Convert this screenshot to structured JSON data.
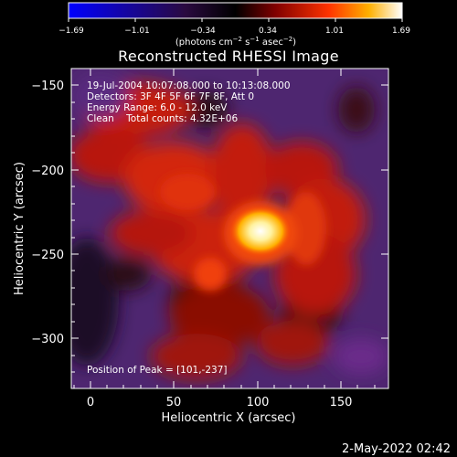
{
  "colorbar": {
    "tick_labels": [
      "−1.69",
      "−1.01",
      "−0.34",
      "0.34",
      "1.01",
      "1.69"
    ],
    "unit_prefix": "(photons cm",
    "unit_exp1": "−2",
    "unit_mid1": " s",
    "unit_exp2": "−1",
    "unit_mid2": " asec",
    "unit_exp3": "−2",
    "unit_suffix": ")",
    "colors": [
      "#0000ff",
      "#000000",
      "#7a0000",
      "#ff3a00",
      "#ffb400",
      "#ffffff"
    ]
  },
  "plot": {
    "title": "Reconstructed RHESSI Image",
    "info_lines": [
      "19-Jul-2004 10:07:08.000 to 10:13:08.000",
      "Detectors: 3F 4F 5F 6F 7F 8F, Att 0",
      "Energy Range: 6.0 - 12.0 keV",
      "Clean    Total counts: 4.32E+06"
    ],
    "peak_label": "Position of Peak = [101,-237]",
    "x_axis": {
      "label": "Heliocentric X (arcsec)",
      "ticks": [
        "0",
        "50",
        "100",
        "150"
      ],
      "range": [
        -12,
        178
      ]
    },
    "y_axis": {
      "label": "Heliocentric Y (arcsec)",
      "ticks": [
        "−150",
        "−200",
        "−250",
        "−300"
      ],
      "range": [
        -330,
        -135
      ]
    },
    "peak": {
      "x": 101,
      "y": -237
    }
  },
  "footer": {
    "date": "2-May-2022 02:42"
  }
}
